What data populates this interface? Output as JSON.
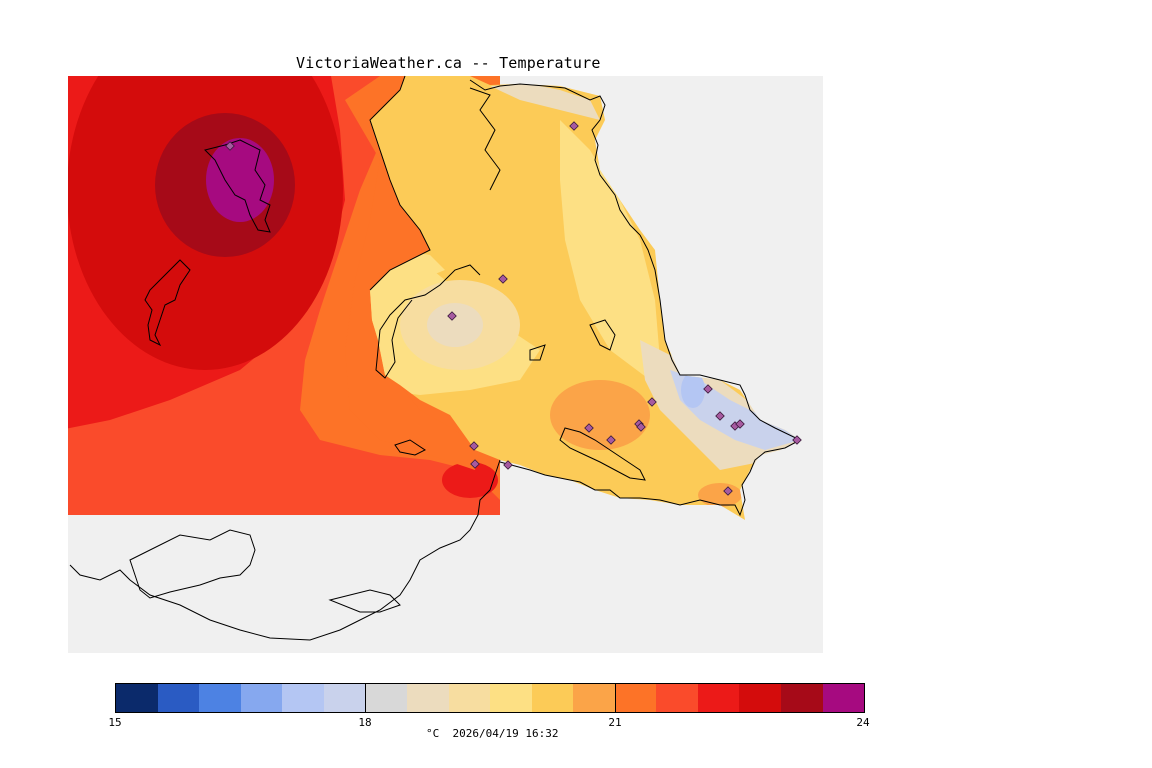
{
  "title": "VictoriaWeather.ca -- Temperature",
  "caption": "°C  2026/04/19 16:32",
  "colorbar": {
    "min": 15,
    "max": 24,
    "ticks": [
      "15",
      "18",
      "21",
      "24"
    ],
    "colors": [
      "#0b2a6b",
      "#2a5bc3",
      "#4d82e3",
      "#86a8ef",
      "#b4c6f3",
      "#c9d2ec",
      "#d8d8d8",
      "#ecdcbe",
      "#f7dda0",
      "#fde084",
      "#fccb57",
      "#fba448",
      "#fd7327",
      "#fa4b2b",
      "#ec1a18",
      "#d40c0c",
      "#a60a18",
      "#a60a80"
    ]
  },
  "stations": 17
}
